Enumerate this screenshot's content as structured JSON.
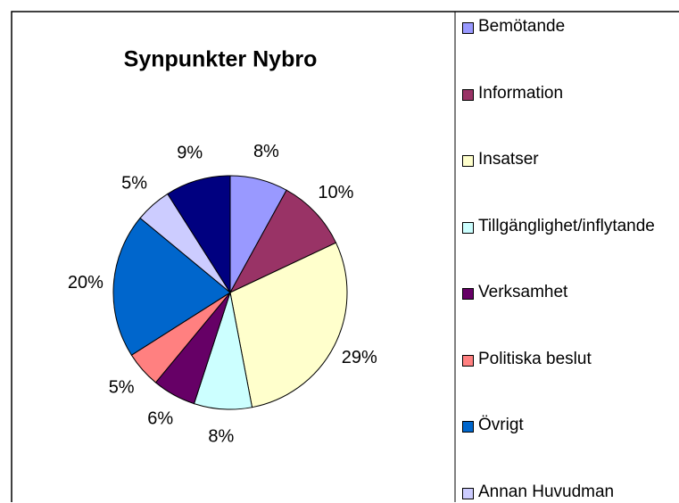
{
  "chart_data": {
    "type": "pie",
    "title": "Synpunkter Nybro",
    "categories": [
      "Bemötande",
      "Information",
      "Insatser",
      "Tillgänglighet/inflytande",
      "Verksamhet",
      "Politiska beslut",
      "Övrigt",
      "Annan Huvudman",
      null
    ],
    "values": [
      8,
      10,
      29,
      8,
      6,
      5,
      20,
      5,
      9
    ],
    "value_labels": [
      "8%",
      "10%",
      "29%",
      "8%",
      "6%",
      "5%",
      "20%",
      "5%",
      "9%"
    ],
    "colors": [
      "#9999ff",
      "#993366",
      "#ffffcc",
      "#ccffff",
      "#660066",
      "#ff8080",
      "#0066cc",
      "#ccccff",
      "#000080"
    ],
    "legend": "right"
  }
}
